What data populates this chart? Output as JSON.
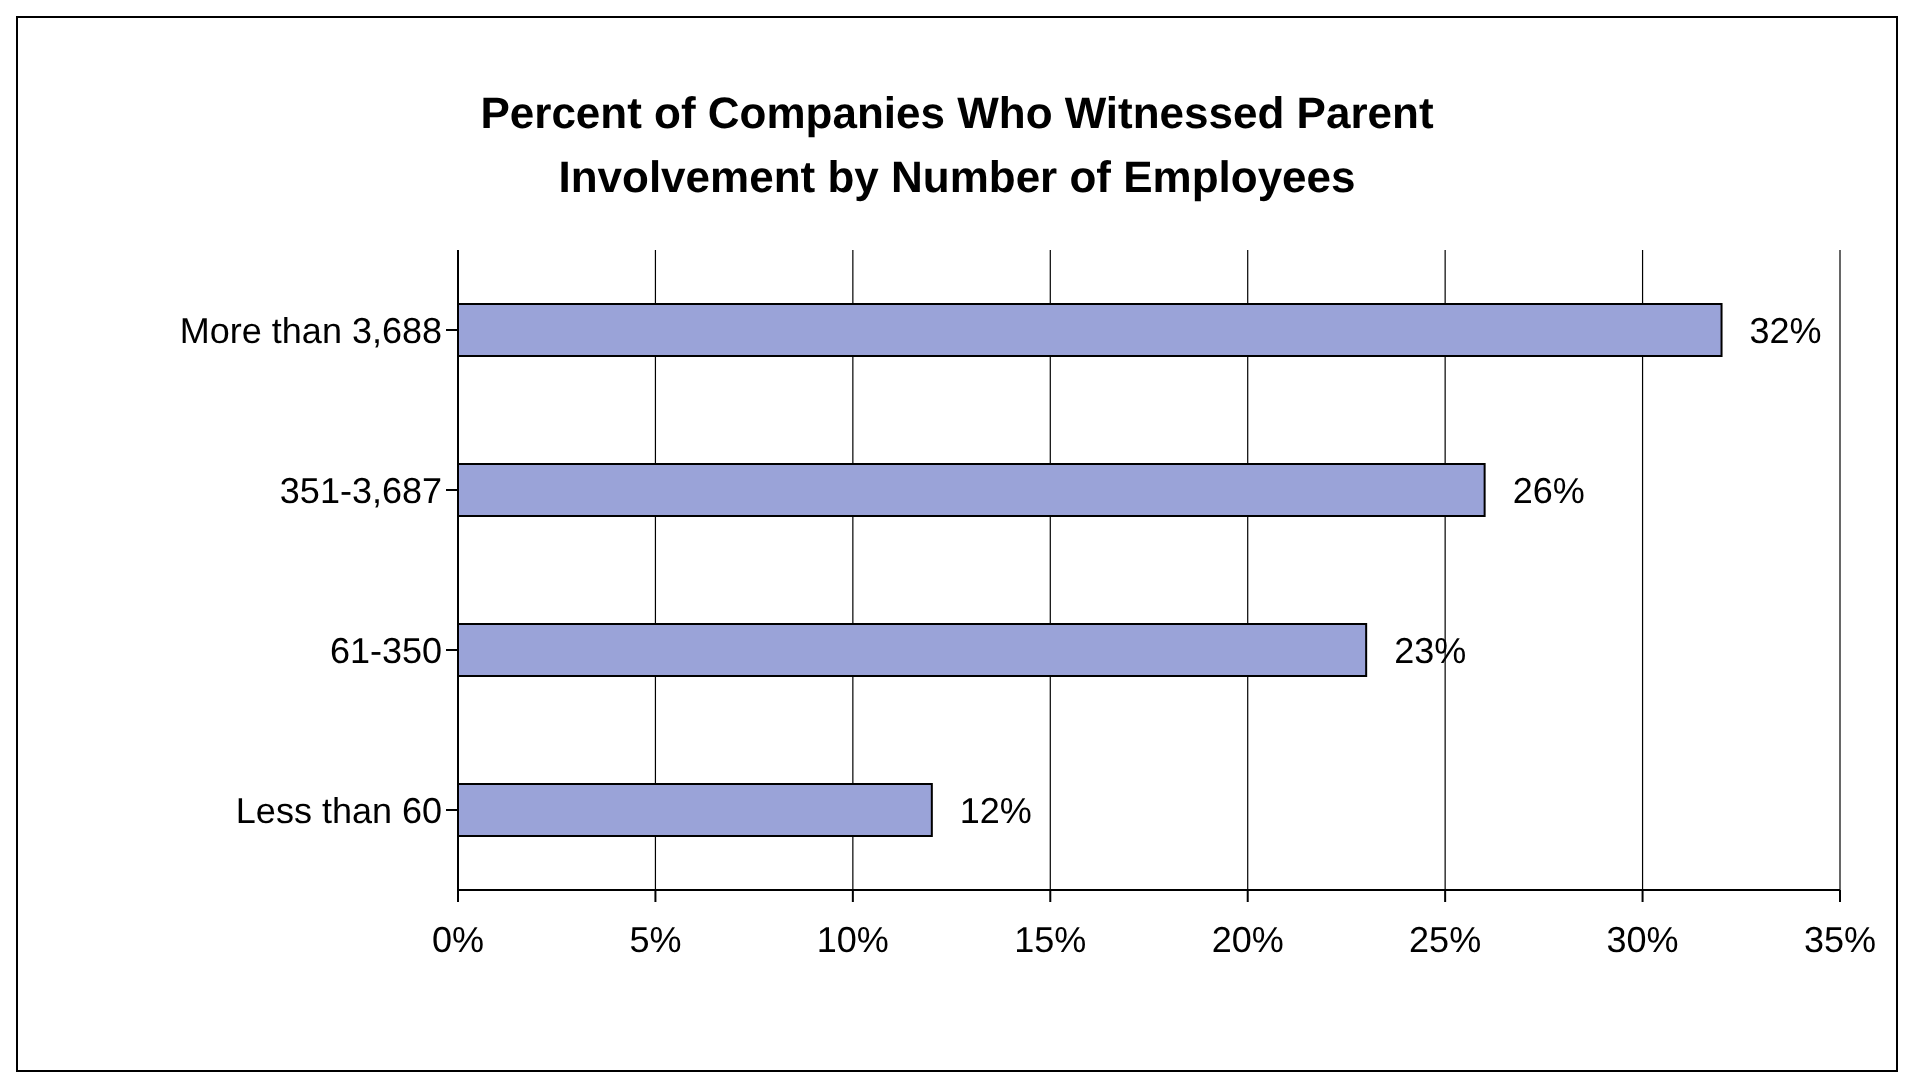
{
  "chart_data": {
    "type": "bar",
    "orientation": "horizontal",
    "title": "Percent of Companies Who Witnessed Parent Involvement by Number of Employees",
    "categories": [
      "More than 3,688",
      "351-3,687",
      "61-350",
      "Less than 60"
    ],
    "values": [
      32,
      26,
      23,
      12
    ],
    "value_labels": [
      "32%",
      "26%",
      "23%",
      "12%"
    ],
    "color": "#9aa3d8",
    "xlim": [
      0,
      35
    ],
    "xticks": [
      {
        "value": 0,
        "label": "0%"
      },
      {
        "value": 5,
        "label": "5%"
      },
      {
        "value": 10,
        "label": "10%"
      },
      {
        "value": 15,
        "label": "15%"
      },
      {
        "value": 20,
        "label": "20%"
      },
      {
        "value": 25,
        "label": "25%"
      },
      {
        "value": 30,
        "label": "30%"
      },
      {
        "value": 35,
        "label": "35%"
      }
    ],
    "grid": "x",
    "legend": false
  }
}
